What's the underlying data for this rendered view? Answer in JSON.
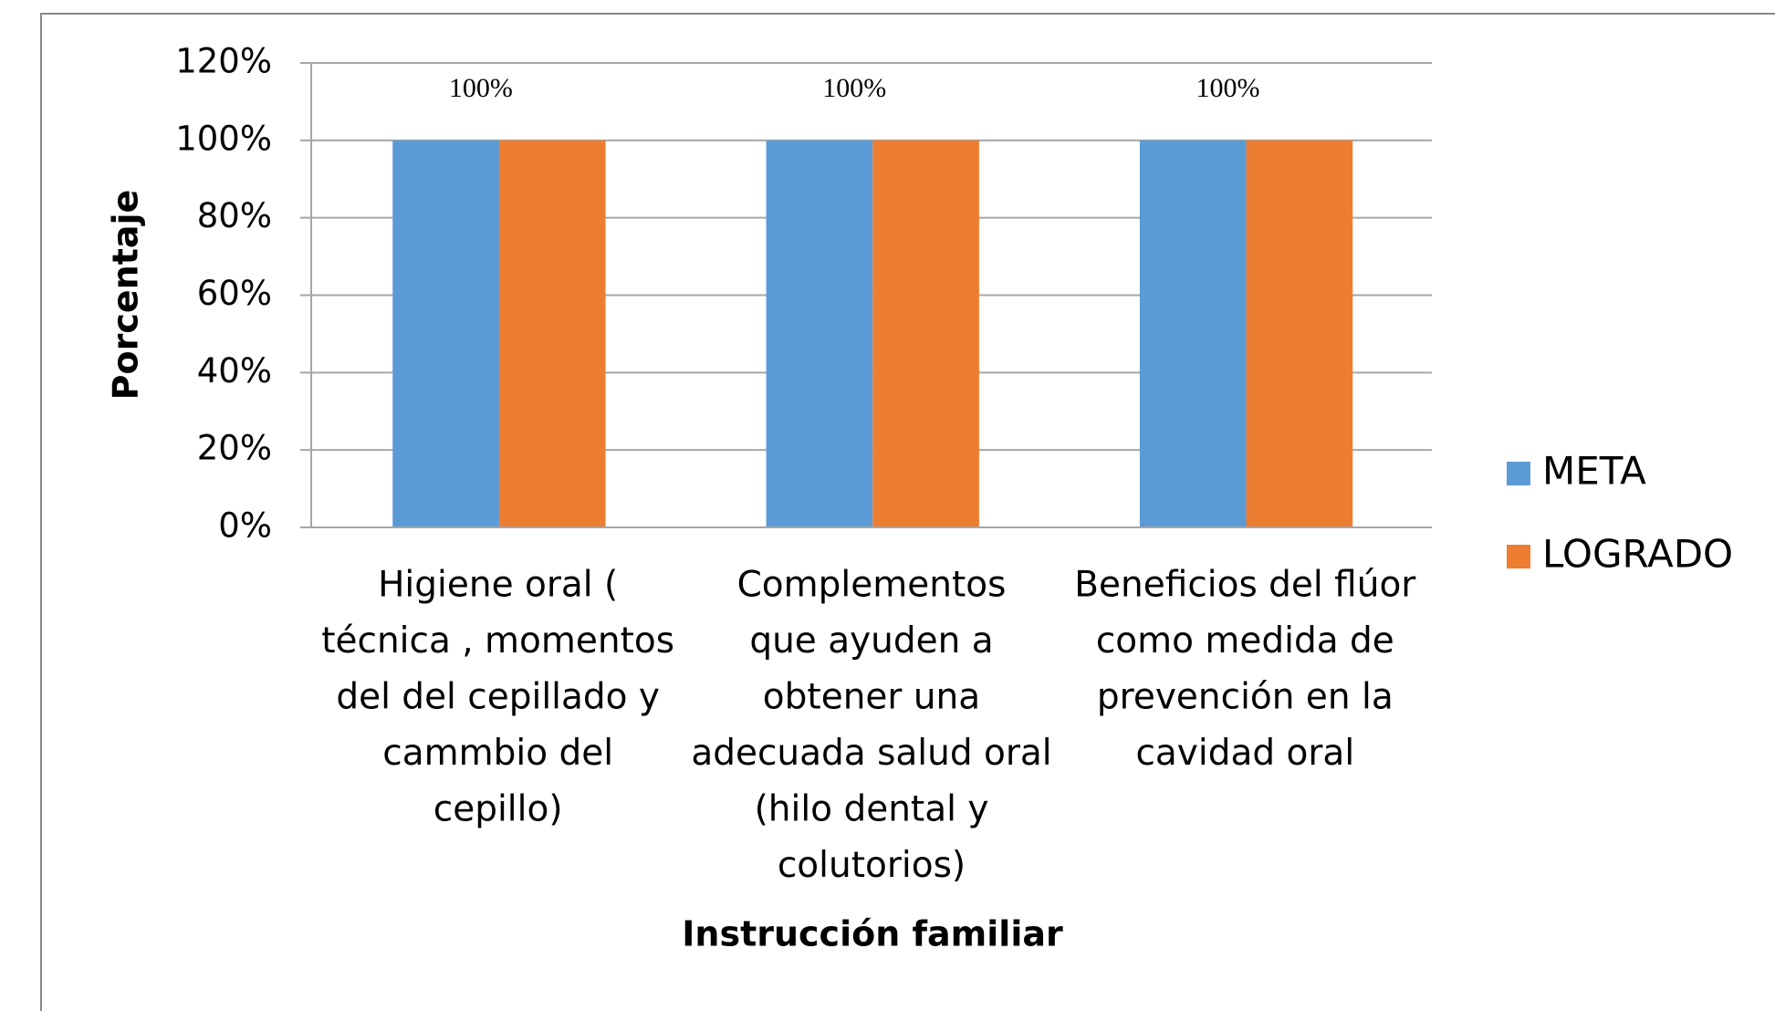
{
  "chart_data": {
    "type": "bar",
    "categories": [
      [
        "Higiene oral (",
        "técnica , momentos",
        "del del cepillado y",
        "cammbio del",
        "cepillo)"
      ],
      [
        "Complementos",
        "que ayuden a",
        "obtener una",
        "adecuada salud oral",
        "(hilo dental y",
        "colutorios)"
      ],
      [
        "Beneficios del flúor",
        "como medida de",
        "prevención en la",
        "cavidad oral"
      ]
    ],
    "series": [
      {
        "name": "META",
        "color": "#5b9bd5",
        "values": [
          100,
          100,
          100
        ]
      },
      {
        "name": "LOGRADO",
        "color": "#ed7d31",
        "values": [
          100,
          100,
          100
        ],
        "value_labels": [
          "100%",
          "100%",
          "100%"
        ]
      }
    ],
    "xlabel": "Instrucción familiar",
    "ylabel": "Porcentaje",
    "ylim": [
      0,
      120
    ],
    "yticks": [
      {
        "value": 0,
        "label": "0%"
      },
      {
        "value": 20,
        "label": "20%"
      },
      {
        "value": 40,
        "label": "40%"
      },
      {
        "value": 60,
        "label": "60%"
      },
      {
        "value": 80,
        "label": "80%"
      },
      {
        "value": 100,
        "label": "100%"
      },
      {
        "value": 120,
        "label": "120%"
      }
    ],
    "grid": true,
    "legend": "right"
  }
}
